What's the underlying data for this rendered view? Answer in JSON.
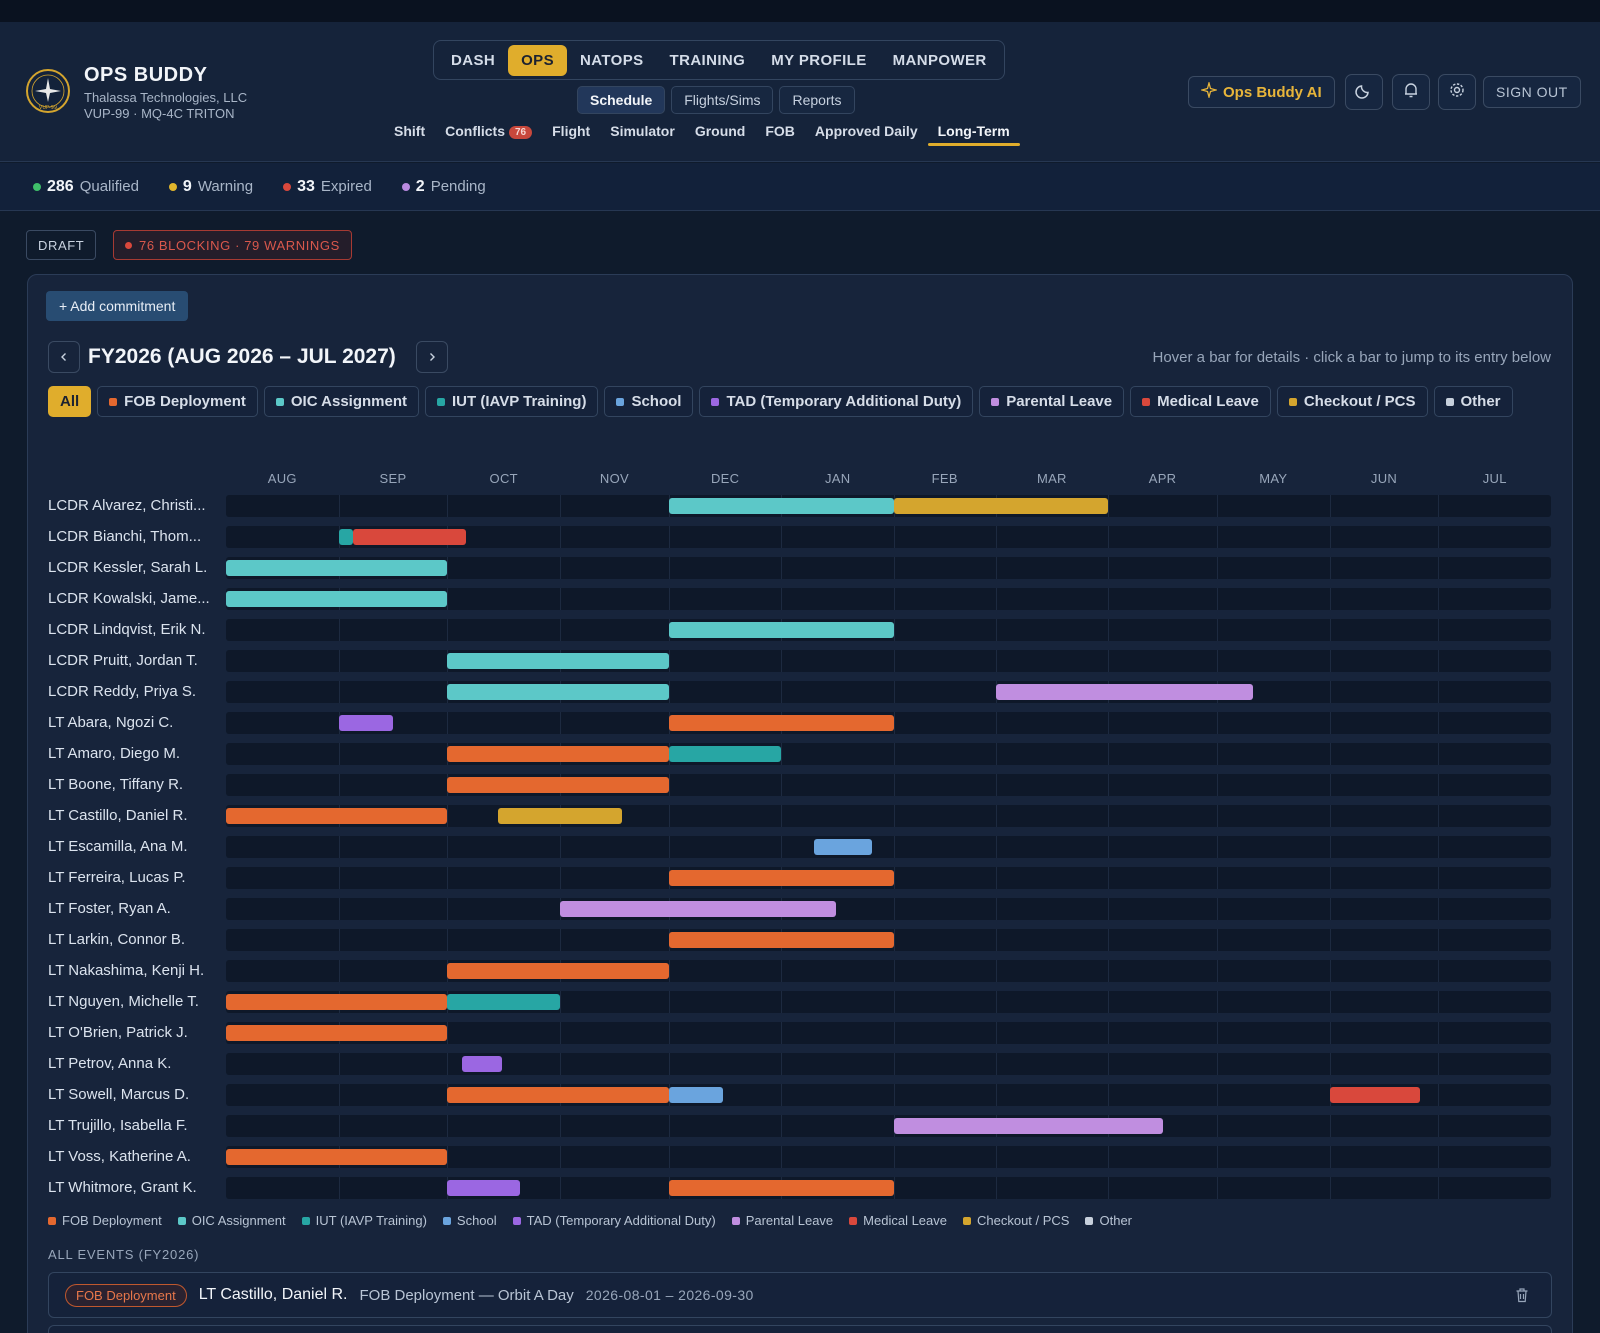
{
  "app": {
    "title": "OPS BUDDY",
    "company": "Thalassa Technologies, LLC",
    "unit": "VUP-99 · MQ-4C TRITON",
    "logo_text": "VUP-99"
  },
  "main_nav": [
    "DASH",
    "OPS",
    "NATOPS",
    "TRAINING",
    "MY PROFILE",
    "MANPOWER"
  ],
  "main_nav_active": "OPS",
  "sub_nav": [
    "Schedule",
    "Flights/Sims",
    "Reports"
  ],
  "sub_nav_active": "Schedule",
  "tert_nav": [
    {
      "label": "Shift"
    },
    {
      "label": "Conflicts",
      "badge": "76"
    },
    {
      "label": "Flight"
    },
    {
      "label": "Simulator"
    },
    {
      "label": "Ground"
    },
    {
      "label": "FOB"
    },
    {
      "label": "Approved Daily"
    },
    {
      "label": "Long-Term",
      "active": true
    }
  ],
  "header_actions": {
    "ai_label": "Ops Buddy AI",
    "theme_icon": "moon-icon",
    "notif_icon": "bell-icon",
    "settings_icon": "gear-icon",
    "signout_label": "SIGN OUT"
  },
  "status": [
    {
      "count": "286",
      "label": "Qualified",
      "color": "#3fbf6a"
    },
    {
      "count": "9",
      "label": "Warning",
      "color": "#e0b52c"
    },
    {
      "count": "33",
      "label": "Expired",
      "color": "#d9483c"
    },
    {
      "count": "2",
      "label": "Pending",
      "color": "#b98ae0"
    }
  ],
  "draft_label": "DRAFT",
  "blocking_label": "76 BLOCKING · 79 WARNINGS",
  "add_commitment_label": "+ Add commitment",
  "fy_title": "FY2026 (AUG 2026 – JUL 2027)",
  "hint": "Hover a bar for details · click a bar to jump to its entry below",
  "filter_all_label": "All",
  "categories": [
    {
      "key": "fob",
      "label": "FOB Deployment",
      "color": "#e4682f"
    },
    {
      "key": "oic",
      "label": "OIC Assignment",
      "color": "#5cc8c8"
    },
    {
      "key": "iut",
      "label": "IUT (IAVP Training)",
      "color": "#27a6a4"
    },
    {
      "key": "school",
      "label": "School",
      "color": "#6aa4de"
    },
    {
      "key": "tad",
      "label": "TAD (Temporary Additional Duty)",
      "color": "#9b67e2"
    },
    {
      "key": "parental",
      "label": "Parental Leave",
      "color": "#c08ee0"
    },
    {
      "key": "medical",
      "label": "Medical Leave",
      "color": "#d9483c"
    },
    {
      "key": "pcs",
      "label": "Checkout / PCS",
      "color": "#d4a52e"
    },
    {
      "key": "other",
      "label": "Other",
      "color": "#c7d0dc"
    }
  ],
  "months": [
    "AUG",
    "SEP",
    "OCT",
    "NOV",
    "DEC",
    "JAN",
    "FEB",
    "MAR",
    "APR",
    "MAY",
    "JUN",
    "JUL"
  ],
  "rows": [
    {
      "name": "LCDR Alvarez, Christi...",
      "bars": [
        {
          "cat": "oic",
          "start": "2026-12-01",
          "end": "2027-01-31"
        },
        {
          "cat": "pcs",
          "start": "2027-02-01",
          "end": "2027-03-31"
        }
      ]
    },
    {
      "name": "LCDR Bianchi, Thom...",
      "bars": [
        {
          "cat": "iut",
          "start": "2026-09-01",
          "end": "2026-09-04"
        },
        {
          "cat": "medical",
          "start": "2026-09-05",
          "end": "2026-10-05"
        }
      ]
    },
    {
      "name": "LCDR Kessler, Sarah L.",
      "bars": [
        {
          "cat": "oic",
          "start": "2026-08-01",
          "end": "2026-09-30"
        }
      ]
    },
    {
      "name": "LCDR Kowalski, Jame...",
      "bars": [
        {
          "cat": "oic",
          "start": "2026-08-01",
          "end": "2026-09-30"
        }
      ]
    },
    {
      "name": "LCDR Lindqvist, Erik N.",
      "bars": [
        {
          "cat": "oic",
          "start": "2026-12-01",
          "end": "2027-01-31"
        }
      ]
    },
    {
      "name": "LCDR Pruitt, Jordan T.",
      "bars": [
        {
          "cat": "oic",
          "start": "2026-10-01",
          "end": "2026-11-30"
        }
      ]
    },
    {
      "name": "LCDR Reddy, Priya S.",
      "bars": [
        {
          "cat": "oic",
          "start": "2026-10-01",
          "end": "2026-11-30"
        },
        {
          "cat": "parental",
          "start": "2027-03-01",
          "end": "2027-05-10"
        }
      ]
    },
    {
      "name": "LT Abara, Ngozi C.",
      "bars": [
        {
          "cat": "tad",
          "start": "2026-09-01",
          "end": "2026-09-15"
        },
        {
          "cat": "fob",
          "start": "2026-12-01",
          "end": "2027-01-31"
        }
      ]
    },
    {
      "name": "LT Amaro, Diego M.",
      "bars": [
        {
          "cat": "fob",
          "start": "2026-10-01",
          "end": "2026-11-30"
        },
        {
          "cat": "iut",
          "start": "2026-12-01",
          "end": "2026-12-31"
        }
      ]
    },
    {
      "name": "LT Boone, Tiffany R.",
      "bars": [
        {
          "cat": "fob",
          "start": "2026-10-01",
          "end": "2026-11-30"
        }
      ]
    },
    {
      "name": "LT Castillo, Daniel R.",
      "bars": [
        {
          "cat": "fob",
          "start": "2026-08-01",
          "end": "2026-09-30"
        },
        {
          "cat": "pcs",
          "start": "2026-10-15",
          "end": "2026-11-17"
        }
      ]
    },
    {
      "name": "LT Escamilla, Ana M.",
      "bars": [
        {
          "cat": "school",
          "start": "2027-01-10",
          "end": "2027-01-25"
        }
      ]
    },
    {
      "name": "LT Ferreira, Lucas P.",
      "bars": [
        {
          "cat": "fob",
          "start": "2026-12-01",
          "end": "2027-01-31"
        }
      ]
    },
    {
      "name": "LT Foster, Ryan A.",
      "bars": [
        {
          "cat": "parental",
          "start": "2026-11-01",
          "end": "2027-01-15"
        }
      ]
    },
    {
      "name": "LT Larkin, Connor B.",
      "bars": [
        {
          "cat": "fob",
          "start": "2026-12-01",
          "end": "2027-01-31"
        }
      ]
    },
    {
      "name": "LT Nakashima, Kenji H.",
      "bars": [
        {
          "cat": "fob",
          "start": "2026-10-01",
          "end": "2026-11-30"
        }
      ]
    },
    {
      "name": "LT Nguyen, Michelle T.",
      "bars": [
        {
          "cat": "fob",
          "start": "2026-08-01",
          "end": "2026-09-30"
        },
        {
          "cat": "iut",
          "start": "2026-10-01",
          "end": "2026-10-31"
        }
      ]
    },
    {
      "name": "LT O'Brien, Patrick J.",
      "bars": [
        {
          "cat": "fob",
          "start": "2026-08-01",
          "end": "2026-09-30"
        }
      ]
    },
    {
      "name": "LT Petrov, Anna K.",
      "bars": [
        {
          "cat": "tad",
          "start": "2026-10-05",
          "end": "2026-10-15"
        }
      ]
    },
    {
      "name": "LT Sowell, Marcus D.",
      "bars": [
        {
          "cat": "fob",
          "start": "2026-10-01",
          "end": "2026-11-30"
        },
        {
          "cat": "school",
          "start": "2026-12-01",
          "end": "2026-12-15"
        },
        {
          "cat": "medical",
          "start": "2027-06-01",
          "end": "2027-06-25"
        }
      ]
    },
    {
      "name": "LT Trujillo, Isabella F.",
      "bars": [
        {
          "cat": "parental",
          "start": "2027-02-01",
          "end": "2027-04-15"
        }
      ]
    },
    {
      "name": "LT Voss, Katherine A.",
      "bars": [
        {
          "cat": "fob",
          "start": "2026-08-01",
          "end": "2026-09-30"
        }
      ]
    },
    {
      "name": "LT Whitmore, Grant K.",
      "bars": [
        {
          "cat": "tad",
          "start": "2026-10-01",
          "end": "2026-10-20"
        },
        {
          "cat": "fob",
          "start": "2026-12-01",
          "end": "2027-01-31"
        }
      ]
    }
  ],
  "all_events_label": "ALL EVENTS (FY2026)",
  "events": [
    {
      "tag": "FOB Deployment",
      "name": "LT Castillo, Daniel R.",
      "desc": "FOB Deployment — Orbit A Day",
      "dates": "2026-08-01 – 2026-09-30"
    }
  ]
}
